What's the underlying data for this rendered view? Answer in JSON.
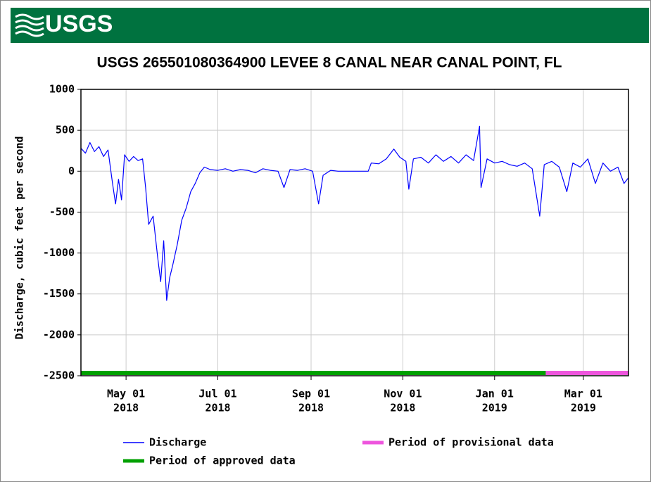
{
  "chart_data": {
    "type": "line",
    "logo": "USGS",
    "title": "USGS 265501080364900 LEVEE 8 CANAL NEAR CANAL POINT, FL",
    "y_label": "Discharge, cubic feet per second",
    "xlim": [
      "2018-04-01",
      "2019-03-31"
    ],
    "xticks": [
      {
        "value": "2018-05-01",
        "label": [
          "May 01",
          "2018"
        ]
      },
      {
        "value": "2018-07-01",
        "label": [
          "Jul 01",
          "2018"
        ]
      },
      {
        "value": "2018-09-01",
        "label": [
          "Sep 01",
          "2018"
        ]
      },
      {
        "value": "2018-11-01",
        "label": [
          "Nov 01",
          "2018"
        ]
      },
      {
        "value": "2019-01-01",
        "label": [
          "Jan 01",
          "2019"
        ]
      },
      {
        "value": "2019-03-01",
        "label": [
          "Mar 01",
          "2019"
        ]
      }
    ],
    "ylim": [
      -2500,
      1000
    ],
    "yticks": [
      -2500,
      -2000,
      -1500,
      -1000,
      -500,
      0,
      500,
      1000
    ],
    "grid": true,
    "x": [
      "2018-04-01",
      "2018-04-04",
      "2018-04-07",
      "2018-04-10",
      "2018-04-13",
      "2018-04-16",
      "2018-04-19",
      "2018-04-22",
      "2018-04-24",
      "2018-04-26",
      "2018-04-28",
      "2018-04-30",
      "2018-05-03",
      "2018-05-06",
      "2018-05-09",
      "2018-05-12",
      "2018-05-14",
      "2018-05-16",
      "2018-05-19",
      "2018-05-22",
      "2018-05-24",
      "2018-05-26",
      "2018-05-28",
      "2018-05-30",
      "2018-06-01",
      "2018-06-04",
      "2018-06-07",
      "2018-06-10",
      "2018-06-13",
      "2018-06-16",
      "2018-06-19",
      "2018-06-22",
      "2018-06-26",
      "2018-07-01",
      "2018-07-06",
      "2018-07-11",
      "2018-07-16",
      "2018-07-21",
      "2018-07-26",
      "2018-07-31",
      "2018-08-05",
      "2018-08-10",
      "2018-08-14",
      "2018-08-18",
      "2018-08-23",
      "2018-08-28",
      "2018-09-02",
      "2018-09-06",
      "2018-09-09",
      "2018-09-14",
      "2018-09-19",
      "2018-09-24",
      "2018-09-29",
      "2018-10-04",
      "2018-10-09",
      "2018-10-11",
      "2018-10-16",
      "2018-10-21",
      "2018-10-26",
      "2018-10-30",
      "2018-11-03",
      "2018-11-05",
      "2018-11-08",
      "2018-11-13",
      "2018-11-18",
      "2018-11-23",
      "2018-11-28",
      "2018-12-03",
      "2018-12-08",
      "2018-12-13",
      "2018-12-18",
      "2018-12-22",
      "2018-12-23",
      "2018-12-27",
      "2019-01-01",
      "2019-01-06",
      "2019-01-11",
      "2019-01-16",
      "2019-01-21",
      "2019-01-26",
      "2019-01-31",
      "2019-02-03",
      "2019-02-08",
      "2019-02-13",
      "2019-02-18",
      "2019-02-22",
      "2019-02-27",
      "2019-03-04",
      "2019-03-09",
      "2019-03-14",
      "2019-03-19",
      "2019-03-24",
      "2019-03-28",
      "2019-03-31"
    ],
    "series": [
      {
        "name": "Discharge",
        "color": "#0000ff",
        "values": [
          280,
          220,
          350,
          240,
          300,
          180,
          260,
          -150,
          -400,
          -100,
          -350,
          200,
          120,
          180,
          130,
          150,
          -200,
          -650,
          -550,
          -1050,
          -1350,
          -850,
          -1580,
          -1300,
          -1150,
          -900,
          -600,
          -450,
          -250,
          -150,
          -20,
          50,
          20,
          10,
          30,
          0,
          20,
          10,
          -20,
          30,
          10,
          0,
          -200,
          20,
          10,
          30,
          0,
          -400,
          -50,
          10,
          0,
          0,
          0,
          0,
          0,
          100,
          90,
          150,
          270,
          170,
          120,
          -220,
          150,
          170,
          100,
          200,
          120,
          180,
          100,
          200,
          130,
          550,
          -200,
          150,
          100,
          120,
          80,
          60,
          100,
          30,
          -550,
          80,
          120,
          50,
          -250,
          100,
          50,
          150,
          -150,
          100,
          0,
          50,
          -150,
          -80
        ]
      }
    ],
    "periods": [
      {
        "name": "Period of approved data",
        "color": "#00a000",
        "start": "2018-04-01",
        "end": "2019-02-04"
      },
      {
        "name": "Period of provisional data",
        "color": "#ee55dd",
        "start": "2019-02-04",
        "end": "2019-03-31"
      }
    ]
  }
}
